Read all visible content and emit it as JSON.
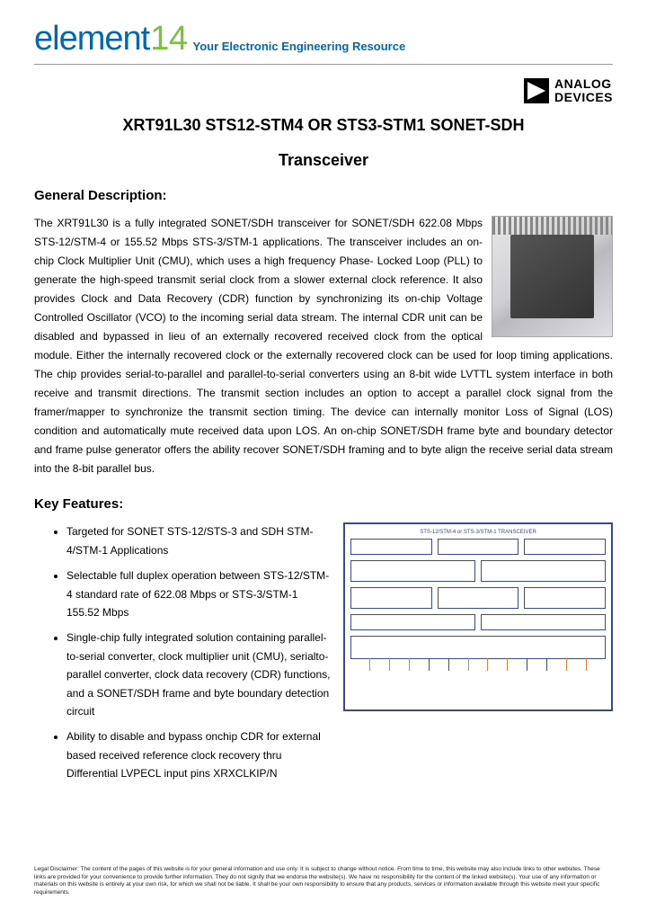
{
  "header": {
    "logo_part1": "element",
    "logo_part2": "14",
    "tagline": "Your Electronic Engineering Resource"
  },
  "brand": {
    "line1": "ANALOG",
    "line2": "DEVICES"
  },
  "title": {
    "line1": "XRT91L30 STS12-STM4 OR STS3-STM1 SONET-SDH",
    "line2": "Transceiver"
  },
  "sections": {
    "general_desc_head": "General Description:",
    "general_desc_body": "The XRT91L30 is a fully integrated SONET/SDH transceiver for SONET/SDH 622.08 Mbps STS-12/STM-4 or 155.52 Mbps STS-3/STM-1 applications. The transceiver includes an on-chip Clock Multiplier Unit (CMU), which uses a high frequency Phase- Locked Loop (PLL) to generate the high-speed transmit serial clock from a slower external clock reference. It also provides Clock and Data Recovery (CDR) function by synchronizing its on-chip Voltage Controlled Oscillator (VCO) to the incoming serial data stream. The internal CDR unit can be disabled and bypassed in lieu of an externally recovered received clock from the optical module. Either the internally recovered clock or the externally recovered clock can be used for loop timing applications. The chip provides serial-to-parallel and parallel-to-serial converters using an 8-bit wide LVTTL system interface in both receive and transmit directions. The transmit section includes an option to accept a parallel clock signal from the framer/mapper to synchronize the transmit section timing. The device can internally monitor Loss of Signal (LOS) condition and automatically mute received data upon LOS. An on-chip SONET/SDH frame byte and boundary detector and frame pulse generator offers the ability recover SONET/SDH framing and to byte align the receive serial data stream into the 8-bit parallel bus.",
    "key_features_head": "Key Features:"
  },
  "features": [
    "Targeted for SONET STS-12/STS-3 and SDH STM-4/STM-1 Applications",
    "Selectable full duplex operation between STS-12/STM-4 standard rate of 622.08 Mbps or STS-3/STM-1 155.52 Mbps",
    "Single-chip fully integrated solution containing parallel-to-serial converter, clock multiplier unit (CMU), serialto-parallel converter, clock data recovery (CDR) functions, and a SONET/SDH frame and byte boundary detection circuit",
    "Ability to disable and bypass onchip CDR for external based received reference clock recovery thru Differential LVPECL input pins XRXCLKIP/N"
  ],
  "diagram": {
    "title": "STS-12/STM-4 or STS-3/STM-1 TRANSCEIVER"
  },
  "disclaimer": "Legal Disclaimer: The content of the pages of this website is for your general information and use only. It is subject to change without notice. From time to time, this website may also include links to other websites. These links are provided for your convenience to provide further information. They do not signify that we endorse the website(s). We have no responsibility for the content of the linked website(s). Your use of any information or materials on this website is entirely at your own risk, for which we shall not be liable. It shall be your own responsibility to ensure that any products, services or information available through this website meet your specific requirements."
}
